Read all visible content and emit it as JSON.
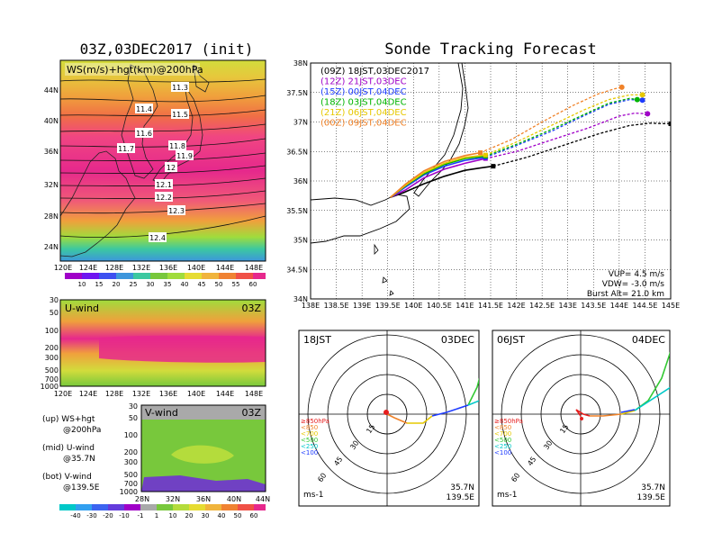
{
  "left_title": "03Z,03DEC2017 (init)",
  "right_title": "Sonde Tracking Forecast",
  "map_panel": {
    "label": "WS(m/s)+hgt(km)@200hPa",
    "lat_labels": [
      "44N",
      "40N",
      "36N",
      "32N",
      "28N",
      "24N"
    ],
    "lon_labels": [
      "120E",
      "124E",
      "128E",
      "132E",
      "136E",
      "140E",
      "144E",
      "148E"
    ],
    "contour_labels": [
      "11.3",
      "11.4",
      "11.5",
      "11.6",
      "11.7",
      "11.8",
      "11.9",
      "12",
      "12.1",
      "12.2",
      "12.3",
      "12.4"
    ],
    "colorbar_ticks": [
      "10",
      "15",
      "20",
      "25",
      "30",
      "35",
      "40",
      "45",
      "50",
      "55",
      "60"
    ]
  },
  "u_panel": {
    "label": "U-wind",
    "time": "03Z",
    "pressure_labels": [
      "30",
      "50",
      "100",
      "200",
      "300",
      "500",
      "700",
      "1000"
    ],
    "lon_labels": [
      "120E",
      "124E",
      "128E",
      "132E",
      "136E",
      "140E",
      "144E",
      "148E"
    ]
  },
  "v_panel": {
    "label": "V-wind",
    "time": "03Z",
    "pressure_labels": [
      "30",
      "50",
      "100",
      "200",
      "300",
      "500",
      "700",
      "1000"
    ],
    "lat_labels": [
      "28N",
      "32N",
      "36N",
      "40N",
      "44N"
    ]
  },
  "legend_notes": [
    {
      "a": "(up) WS+hgt",
      "b": "@200hPa"
    },
    {
      "a": "(mid) U-wind",
      "b": "@35.7N"
    },
    {
      "a": "(bot) V-wind",
      "b": "@139.5E"
    }
  ],
  "bottom_colorbar_ticks": [
    "-40",
    "-30",
    "-20",
    "-10",
    "-1",
    "1",
    "10",
    "20",
    "30",
    "40",
    "50",
    "60"
  ],
  "colors": {
    "launch_09Z": "#000000",
    "launch_12Z": "#a000c8",
    "launch_15Z": "#1e3cff",
    "launch_18Z": "#00b400",
    "launch_21Z": "#e6c800",
    "launch_00Z": "#f08228"
  },
  "chart_data": {
    "type": "line",
    "title": "Sonde Tracking Forecast",
    "xlabel": "",
    "ylabel": "",
    "xlim": [
      138,
      145
    ],
    "ylim": [
      34,
      38
    ],
    "x_ticks": [
      "138E",
      "138.5E",
      "139E",
      "139.5E",
      "140E",
      "140.5E",
      "141E",
      "141.5E",
      "142E",
      "142.5E",
      "143E",
      "143.5E",
      "144E",
      "144.5E",
      "145E"
    ],
    "y_ticks": [
      "34N",
      "34.5N",
      "35N",
      "35.5N",
      "36N",
      "36.5N",
      "37N",
      "37.5N",
      "38N"
    ],
    "grid": true,
    "legend_position": "top-left",
    "series": [
      {
        "name": "(09Z) 18JST,03DEC2017",
        "color": "#000000",
        "solid": [
          [
            139.55,
            35.72
          ],
          [
            139.8,
            35.8
          ],
          [
            140.2,
            35.95
          ],
          [
            140.6,
            36.08
          ],
          [
            141.0,
            36.18
          ],
          [
            141.3,
            36.22
          ],
          [
            141.55,
            36.25
          ]
        ],
        "dashed": [
          [
            141.55,
            36.25
          ],
          [
            142.2,
            36.4
          ],
          [
            142.9,
            36.6
          ],
          [
            143.6,
            36.8
          ],
          [
            144.2,
            36.94
          ],
          [
            144.6,
            36.98
          ],
          [
            145.0,
            36.97
          ]
        ]
      },
      {
        "name": "(12Z) 21JST,03DEC",
        "color": "#a000c8",
        "solid": [
          [
            139.55,
            35.72
          ],
          [
            139.85,
            35.85
          ],
          [
            140.2,
            36.05
          ],
          [
            140.6,
            36.2
          ],
          [
            141.0,
            36.3
          ],
          [
            141.4,
            36.38
          ]
        ],
        "dashed": [
          [
            141.4,
            36.38
          ],
          [
            142.0,
            36.5
          ],
          [
            142.7,
            36.7
          ],
          [
            143.4,
            36.9
          ],
          [
            144.0,
            37.1
          ],
          [
            144.3,
            37.15
          ],
          [
            144.55,
            37.14
          ]
        ]
      },
      {
        "name": "(15Z) 00JST,04DEC",
        "color": "#1e3cff",
        "solid": [
          [
            139.55,
            35.72
          ],
          [
            139.85,
            35.9
          ],
          [
            140.2,
            36.1
          ],
          [
            140.6,
            36.25
          ],
          [
            141.0,
            36.35
          ],
          [
            141.4,
            36.4
          ]
        ],
        "dashed": [
          [
            141.4,
            36.4
          ],
          [
            142.0,
            36.6
          ],
          [
            142.7,
            36.85
          ],
          [
            143.3,
            37.1
          ],
          [
            143.8,
            37.3
          ],
          [
            144.2,
            37.38
          ],
          [
            144.45,
            37.37
          ]
        ]
      },
      {
        "name": "(18Z) 03JST,04DEC",
        "color": "#00b400",
        "solid": [
          [
            139.55,
            35.72
          ],
          [
            139.85,
            35.92
          ],
          [
            140.2,
            36.12
          ],
          [
            140.6,
            36.28
          ],
          [
            141.0,
            36.38
          ],
          [
            141.4,
            36.42
          ]
        ],
        "dashed": [
          [
            141.4,
            36.42
          ],
          [
            142.0,
            36.62
          ],
          [
            142.7,
            36.88
          ],
          [
            143.3,
            37.12
          ],
          [
            143.8,
            37.32
          ],
          [
            144.2,
            37.4
          ],
          [
            144.35,
            37.38
          ]
        ]
      },
      {
        "name": "(21Z) 06JST,04DEC",
        "color": "#e6c800",
        "solid": [
          [
            139.55,
            35.72
          ],
          [
            139.85,
            35.93
          ],
          [
            140.2,
            36.14
          ],
          [
            140.6,
            36.3
          ],
          [
            141.0,
            36.4
          ],
          [
            141.4,
            36.44
          ]
        ],
        "dashed": [
          [
            141.4,
            36.44
          ],
          [
            142.0,
            36.66
          ],
          [
            142.7,
            36.95
          ],
          [
            143.3,
            37.2
          ],
          [
            143.8,
            37.38
          ],
          [
            144.2,
            37.46
          ],
          [
            144.45,
            37.46
          ]
        ]
      },
      {
        "name": "(00Z) 09JST,04DEC",
        "color": "#f08228",
        "solid": [
          [
            139.55,
            35.72
          ],
          [
            139.85,
            35.95
          ],
          [
            140.2,
            36.17
          ],
          [
            140.6,
            36.33
          ],
          [
            141.0,
            36.43
          ],
          [
            141.3,
            36.48
          ]
        ],
        "dashed": [
          [
            141.3,
            36.48
          ],
          [
            141.9,
            36.7
          ],
          [
            142.5,
            37.0
          ],
          [
            143.1,
            37.28
          ],
          [
            143.6,
            37.48
          ],
          [
            143.9,
            37.56
          ],
          [
            144.05,
            37.59
          ]
        ]
      }
    ],
    "annotations": [
      "VUP= 4.5 m/s",
      "VDW= -3.0 m/s",
      "Burst Alt= 21.0 km"
    ]
  },
  "hodo_left": {
    "time": "18JST",
    "date": "03DEC",
    "unit": "ms-1",
    "lat": "35.7N",
    "lon": "139.5E",
    "ring_labels": [
      "15",
      "30",
      "45",
      "60"
    ],
    "level_legend": [
      "≥850hPa",
      "<850",
      "<700",
      "<500",
      "<250",
      "<100"
    ]
  },
  "hodo_right": {
    "time": "06JST",
    "date": "04DEC",
    "unit": "ms-1",
    "lat": "35.7N",
    "lon": "139.5E",
    "ring_labels": [
      "15",
      "30",
      "45",
      "60"
    ],
    "level_legend": [
      "≥850hPa",
      "<850",
      "<700",
      "<500",
      "<250",
      "<100"
    ]
  }
}
